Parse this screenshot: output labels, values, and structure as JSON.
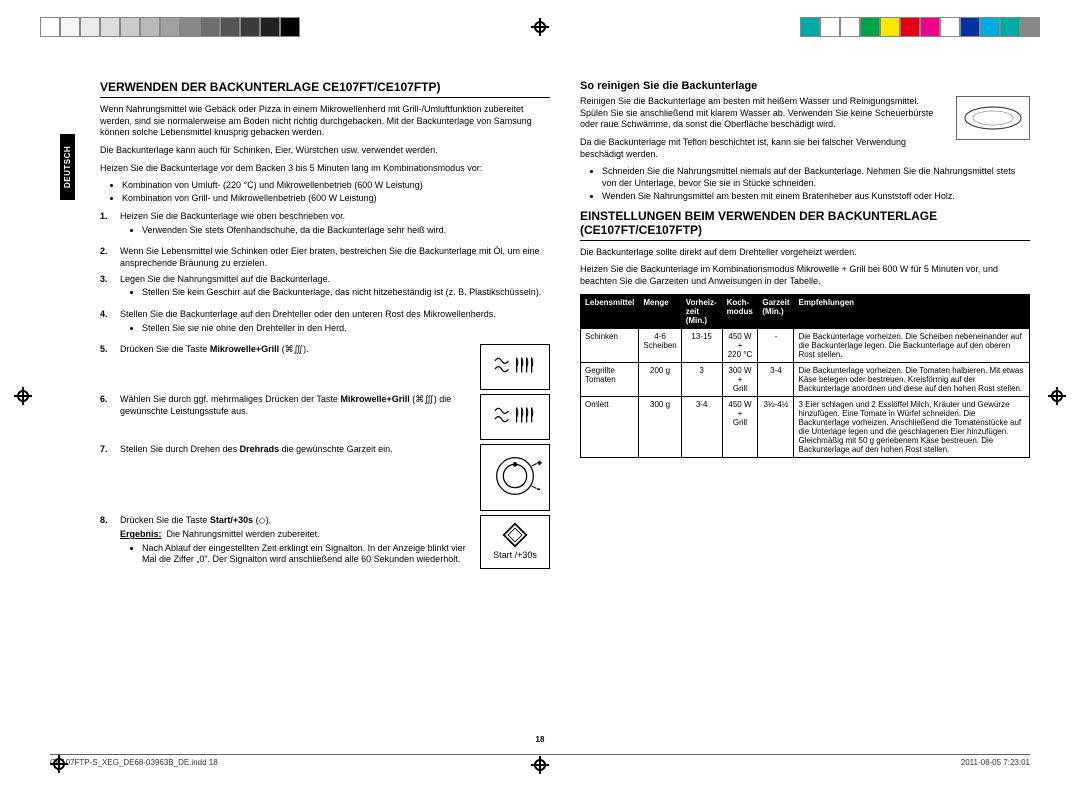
{
  "sideTab": "DEUTSCH",
  "colorbar": {
    "gradient": [
      "#ffffff",
      "#f5f5f5",
      "#eaeaea",
      "#dcdcdc",
      "#cccccc",
      "#b8b8b8",
      "#a0a0a0",
      "#888888",
      "#6e6e6e",
      "#555555",
      "#3b3b3b",
      "#222222",
      "#000000"
    ],
    "colors": [
      "#00a9a5",
      "#ffffff",
      "#ffffff",
      "#00a34a",
      "#ffe600",
      "#e2001a",
      "#ec008c",
      "#ffffff",
      "#0033a0",
      "#00a9e0",
      "#00a9a5",
      "#888888"
    ]
  },
  "left": {
    "h1": "Verwenden der Backunterlage CE107FT/CE107FTP)",
    "intro1": "Wenn Nahrungsmittel wie Gebäck oder Pizza in einem Mikrowellenherd mit Grill-/Umluftfunktion zubereitet werden, sind sie normalerweise am Boden nicht richtig durchgebacken. Mit der Backunterlage von Samsung können solche Lebensmittel knusprig gebacken werden.",
    "intro2": "Die Backunterlage kann auch für Schinken, Eier, Würstchen usw. verwendet werden.",
    "preheat": "Heizen Sie die Backunterlage vor dem Backen 3 bis 5 Minuten lang im Kombinationsmodus vor:",
    "preheat_items": [
      "Kombination von Umluft- (220 °C) und Mikrowellenbetrieb (600 W Leistung)",
      "Kombination von Grill- und Mikrowellenbetrieb (600 W Leistung)"
    ],
    "steps": [
      {
        "n": "1.",
        "text": "Heizen Sie die Backunterlage wie oben beschrieben vor.",
        "bullets": [
          "Verwenden Sie stets Ofenhandschuhe, da die Backunterlage sehr heiß wird."
        ]
      },
      {
        "n": "2.",
        "text": "Wenn Sie Lebensmittel wie Schinken oder Eier braten, bestreichen Sie die Backunterlage mit Öl, um eine ansprechende Bräunung zu erzielen."
      },
      {
        "n": "3.",
        "text": "Legen Sie die Nahrungsmittel auf die Backunterlage.",
        "bullets": [
          "Stellen Sie kein Geschirr auf die Backunterlage, das nicht hitzebeständig ist (z. B. Plastikschüsseln)."
        ]
      },
      {
        "n": "4.",
        "text": "Stellen Sie die Backunterlage auf den Drehteller oder den unteren Rost des Mikrowellenherds.",
        "bullets": [
          "Stellen Sie sie nie ohne den Drehteller in den Herd."
        ]
      },
      {
        "n": "5.",
        "html": "Drücken Sie die Taste <b>Mikrowelle+Grill</b> (⌘∭).",
        "icon": "wave"
      },
      {
        "n": "6.",
        "html": "Wählen Sie durch ggf. mehrmaliges Drücken der Taste <b>Mikrowelle+Grill</b> (⌘∭) die gewünschte Leistungsstufe aus.",
        "icon": "wave"
      },
      {
        "n": "7.",
        "html": "Stellen Sie durch Drehen des <b>Drehrads</b> die gewünschte Garzeit ein.",
        "icon": "dial"
      },
      {
        "n": "8.",
        "html": "Drücken Sie die Taste <b>Start/+30s</b> (◇).",
        "result_label": "Ergebnis:",
        "result_text": "Die Nahrungsmittel werden zubereitet.",
        "bullets": [
          "Nach Ablauf der eingestellten Zeit erklingt ein Signalton. In der Anzeige blinkt vier Mal die Ziffer „0\". Der Signalton wird anschließend alle 60 Sekunden wiederholt."
        ],
        "icon": "start",
        "icon_label": "Start /+30s"
      }
    ]
  },
  "right": {
    "h2": "So reinigen Sie die Backunterlage",
    "clean1": "Reinigen Sie die Backunterlage am besten mit heißem Wasser und Reinigungsmittel. Spülen Sie sie anschließend mit klarem Wasser ab. Verwenden Sie keine Scheuerbürste oder raue Schwämme, da sonst die Oberfläche beschädigt wird.",
    "clean2": "Da die Backunterlage mit Teflon beschichtet ist, kann sie bei falscher Verwendung beschädigt werden.",
    "clean_bullets": [
      "Schneiden Sie die Nahrungsmittel niemals auf der Backunterlage. Nehmen Sie die Nahrungsmittel stets von der Unterlage, bevor Sie sie in Stücke schneiden.",
      "Wenden Sie Nahrungsmittel am besten mit einem Bratenheber aus Kunststoff oder Holz."
    ],
    "h1": "Einstellungen beim Verwenden der Backunterlage (CE107FT/CE107FTP)",
    "table_intro1": "Die Backunterlage sollte direkt auf dem Drehteller vorgeheizt werden.",
    "table_intro2": "Heizen Sie die Backunterlage im Kombinationsmodus Mikrowelle + Grill bei 600 W für 5 Minuten vor, und beachten Sie die Garzeiten und Anweisungen in der Tabelle.",
    "table": {
      "headers": [
        "Lebensmittel",
        "Menge",
        "Vorheiz-\nzeit (Min.)",
        "Koch-\nmodus",
        "Garzeit\n(Min.)",
        "Empfehlungen"
      ],
      "rows": [
        {
          "food": "Schinken",
          "qty": "4-6\nScheiben",
          "pre": "13-15",
          "mode": "450 W +\n220 °C",
          "time": "-",
          "rec": "Die Backunterlage vorheizen. Die Scheiben nebeneinander auf die Backunterlage legen. Die Backunterlage auf den oberen Rost stellen."
        },
        {
          "food": "Gegrillte\nTomaten",
          "qty": "200 g",
          "pre": "3",
          "mode": "300 W +\nGrill",
          "time": "3-4",
          "rec": "Die Backunterlage vorheizen. Die Tomaten halbieren. Mit etwas Käse belegen oder bestreuen. Kreisförmig auf der Backunterlage anordnen und diese auf den hohen Rost stellen."
        },
        {
          "food": "Omlett",
          "qty": "300 g",
          "pre": "3-4",
          "mode": "450 W +\nGrill",
          "time": "3½-4½",
          "rec": "3 Eier schlagen und 2 Esslöffel Milch, Kräuter und Gewürze hinzufügen. Eine Tomate in Würfel schneiden. Die Backunterlage vorheizen. Anschließend die Tomatenstücke auf die Unterlage legen und die geschlagenen Eier hinzufügen. Gleichmäßig mit 50 g geriebenem Käse bestreuen. Die Backunterlage auf den hohen Rost stellen."
        }
      ]
    }
  },
  "pageNum": "18",
  "footer": {
    "file": "CE107FTP-S_XEG_DE68-03963B_DE.indd   18",
    "date": "2011-08-05   7:23:01"
  }
}
